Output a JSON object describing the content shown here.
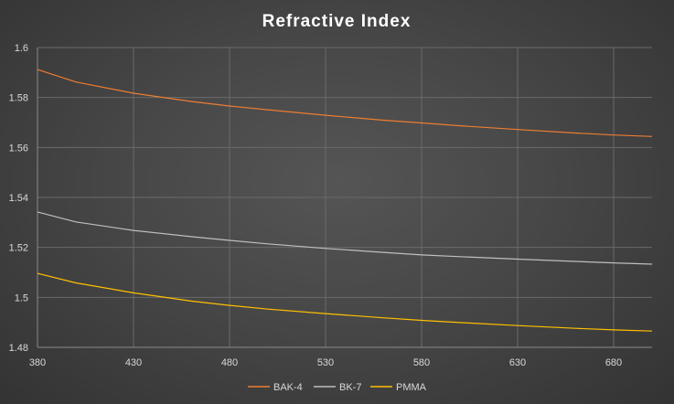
{
  "chart_data": {
    "type": "line",
    "title": "Refractive Index",
    "xlabel": "",
    "ylabel": "",
    "xlim": [
      380,
      700
    ],
    "ylim": [
      1.48,
      1.6
    ],
    "x_ticks": [
      380,
      430,
      480,
      530,
      580,
      630,
      680
    ],
    "y_ticks": [
      1.48,
      1.5,
      1.52,
      1.54,
      1.56,
      1.58,
      1.6
    ],
    "y_tick_labels": [
      "1.48",
      "1.5",
      "1.52",
      "1.54",
      "1.56",
      "1.58",
      "1.6"
    ],
    "grid": true,
    "legend_position": "bottom",
    "x": [
      380,
      400,
      430,
      460,
      480,
      500,
      530,
      560,
      580,
      600,
      630,
      660,
      680,
      700
    ],
    "series": [
      {
        "name": "BAK-4",
        "color": "#ed7d31",
        "values": [
          1.5912,
          1.5862,
          1.5817,
          1.5784,
          1.5766,
          1.5751,
          1.5729,
          1.5709,
          1.5698,
          1.5687,
          1.5672,
          1.5658,
          1.565,
          1.5644
        ]
      },
      {
        "name": "BK-7",
        "color": "#bfbfbf",
        "values": [
          1.5342,
          1.5302,
          1.5268,
          1.5243,
          1.5228,
          1.5214,
          1.5196,
          1.518,
          1.517,
          1.5163,
          1.5153,
          1.5144,
          1.5138,
          1.5133
        ]
      },
      {
        "name": "PMMA",
        "color": "#ffc000",
        "values": [
          1.5096,
          1.5058,
          1.5018,
          1.4985,
          1.4968,
          1.4953,
          1.4935,
          1.4918,
          1.4908,
          1.4899,
          1.4887,
          1.4876,
          1.487,
          1.4865
        ]
      }
    ]
  }
}
